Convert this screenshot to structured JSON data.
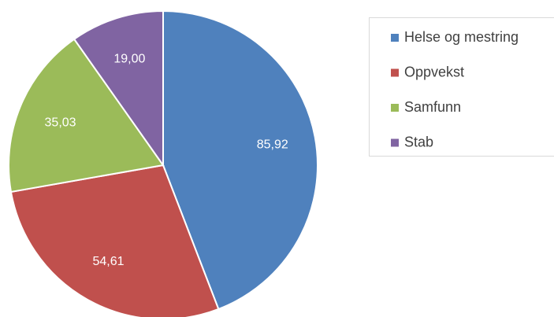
{
  "chart_data": {
    "type": "pie",
    "categories": [
      "Helse og mestring",
      "Oppvekst",
      "Samfunn",
      "Stab"
    ],
    "values": [
      85.92,
      54.61,
      35.03,
      19.0
    ],
    "value_labels": [
      "85,92",
      "54,61",
      "35,03",
      "19,00"
    ],
    "colors": [
      "#4f81bd",
      "#c0504d",
      "#9bbb59",
      "#8064a2"
    ],
    "legend": "right"
  }
}
